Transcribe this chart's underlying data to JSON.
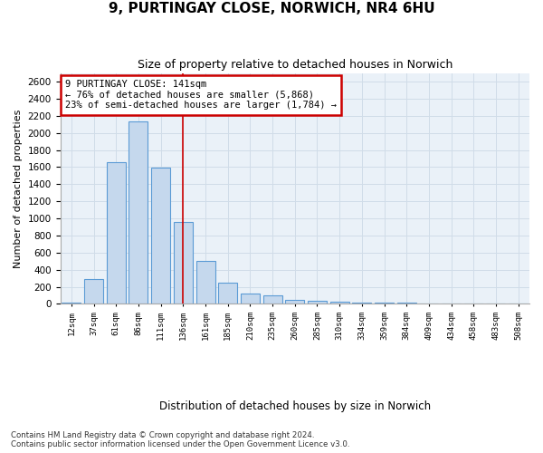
{
  "title_line1": "9, PURTINGAY CLOSE, NORWICH, NR4 6HU",
  "title_line2": "Size of property relative to detached houses in Norwich",
  "xlabel": "Distribution of detached houses by size in Norwich",
  "ylabel": "Number of detached properties",
  "bar_labels": [
    "12sqm",
    "37sqm",
    "61sqm",
    "86sqm",
    "111sqm",
    "136sqm",
    "161sqm",
    "185sqm",
    "210sqm",
    "235sqm",
    "260sqm",
    "285sqm",
    "310sqm",
    "334sqm",
    "359sqm",
    "384sqm",
    "409sqm",
    "434sqm",
    "458sqm",
    "483sqm",
    "508sqm"
  ],
  "bar_values": [
    20,
    290,
    1660,
    2130,
    1590,
    960,
    500,
    245,
    120,
    95,
    50,
    40,
    25,
    20,
    15,
    15,
    10,
    5,
    10,
    5,
    10
  ],
  "bar_color": "#c5d8ed",
  "bar_edgecolor": "#5b9bd5",
  "annotation_text": "9 PURTINGAY CLOSE: 141sqm\n← 76% of detached houses are smaller (5,868)\n23% of semi-detached houses are larger (1,784) →",
  "annotation_box_edgecolor": "#cc0000",
  "vline_x": 5.0,
  "vline_color": "#cc0000",
  "ylim": [
    0,
    2700
  ],
  "yticks": [
    0,
    200,
    400,
    600,
    800,
    1000,
    1200,
    1400,
    1600,
    1800,
    2000,
    2200,
    2400,
    2600
  ],
  "grid_color": "#d0dce8",
  "footer_line1": "Contains HM Land Registry data © Crown copyright and database right 2024.",
  "footer_line2": "Contains public sector information licensed under the Open Government Licence v3.0.",
  "fig_bg": "#ffffff",
  "ax_bg": "#eaf1f8"
}
